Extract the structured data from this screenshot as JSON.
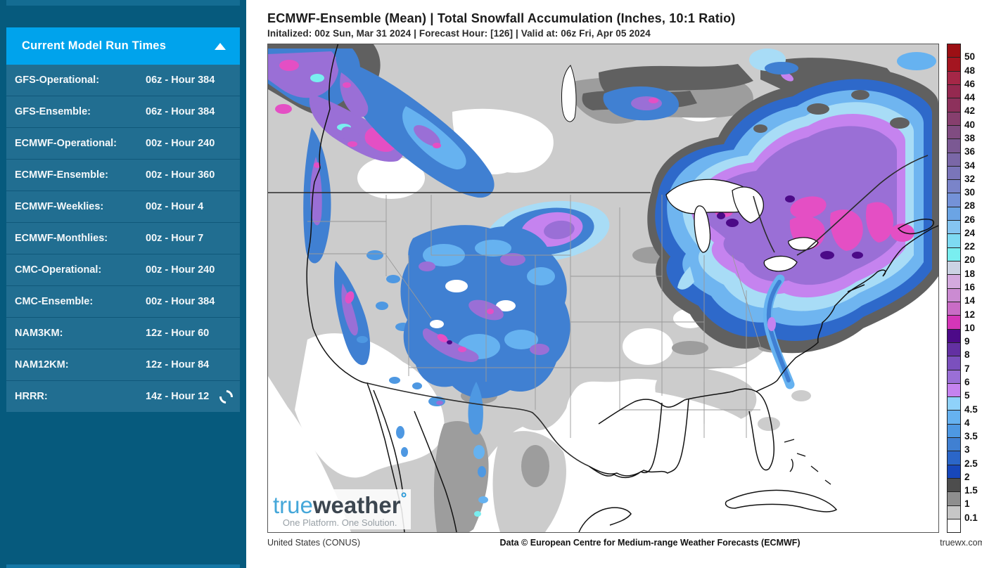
{
  "sidebar": {
    "header": {
      "title": "Current Model Run Times",
      "collapse_icon": "triangle-up"
    },
    "items": [
      {
        "label": "GFS-Operational:",
        "value": "06z - Hour 384",
        "loading": false
      },
      {
        "label": "GFS-Ensemble:",
        "value": "06z - Hour 384",
        "loading": false
      },
      {
        "label": "ECMWF-Operational:",
        "value": "00z - Hour 240",
        "loading": false
      },
      {
        "label": "ECMWF-Ensemble:",
        "value": "00z - Hour 360",
        "loading": false
      },
      {
        "label": "ECMWF-Weeklies:",
        "value": "00z - Hour 4",
        "loading": false
      },
      {
        "label": "ECMWF-Monthlies:",
        "value": "00z - Hour 7",
        "loading": false
      },
      {
        "label": "CMC-Operational:",
        "value": "00z - Hour 240",
        "loading": false
      },
      {
        "label": "CMC-Ensemble:",
        "value": "00z - Hour 384",
        "loading": false
      },
      {
        "label": "NAM3KM:",
        "value": "12z - Hour 60",
        "loading": false
      },
      {
        "label": "NAM12KM:",
        "value": "12z - Hour 84",
        "loading": false
      },
      {
        "label": "HRRR:",
        "value": "14z - Hour 12",
        "loading": true
      }
    ]
  },
  "main": {
    "title": "ECMWF-Ensemble (Mean) | Total Snowfall Accumulation (Inches, 10:1 Ratio)",
    "subtitle": "Initalized: 00z Sun, Mar 31 2024  |  Forecast Hour: [126]  |  Valid at: 06z Fri, Apr 05 2024",
    "footer": {
      "left": "United States (CONUS)",
      "center": "Data © European Centre for Medium-range Weather Forecasts (ECMWF)",
      "right": "truewx.com"
    },
    "logo": {
      "part1": "true",
      "part2": "weather",
      "degree": "°",
      "tagline": "One Platform. One Solution."
    }
  },
  "chart_data": {
    "type": "heatmap",
    "title": "ECMWF-Ensemble (Mean) | Total Snowfall Accumulation (Inches, 10:1 Ratio)",
    "model": "ECMWF-Ensemble (Mean)",
    "variable": "Total Snowfall Accumulation",
    "units": "Inches (10:1 Ratio)",
    "initialized": "00z Sun, Mar 31 2024",
    "forecast_hour": 126,
    "valid_at": "06z Fri, Apr 05 2024",
    "region": "United States (CONUS)",
    "legend_position": "right",
    "legend": {
      "entries": [
        {
          "label": "50",
          "color": "#9c0f14"
        },
        {
          "label": "48",
          "color": "#a41520"
        },
        {
          "label": "46",
          "color": "#a52747"
        },
        {
          "label": "44",
          "color": "#952950"
        },
        {
          "label": "42",
          "color": "#8d315c"
        },
        {
          "label": "40",
          "color": "#873f6e"
        },
        {
          "label": "38",
          "color": "#804c81"
        },
        {
          "label": "36",
          "color": "#7b5993"
        },
        {
          "label": "34",
          "color": "#7a67a7"
        },
        {
          "label": "32",
          "color": "#7a75b9"
        },
        {
          "label": "30",
          "color": "#7a84c9"
        },
        {
          "label": "28",
          "color": "#7492d8"
        },
        {
          "label": "26",
          "color": "#6ba4e4"
        },
        {
          "label": "24",
          "color": "#85c5f0"
        },
        {
          "label": "22",
          "color": "#7edaf2"
        },
        {
          "label": "20",
          "color": "#79eef0"
        },
        {
          "label": "18",
          "color": "#cbd3e3"
        },
        {
          "label": "16",
          "color": "#d4aade"
        },
        {
          "label": "14",
          "color": "#cb8bd2"
        },
        {
          "label": "12",
          "color": "#c96cc6"
        },
        {
          "label": "10",
          "color": "#d436b8"
        },
        {
          "label": "9",
          "color": "#4c0a88"
        },
        {
          "label": "8",
          "color": "#6330a2"
        },
        {
          "label": "7",
          "color": "#7b50bd"
        },
        {
          "label": "6",
          "color": "#9a6fd6"
        },
        {
          "label": "5",
          "color": "#c583ef"
        },
        {
          "label": "4.5",
          "color": "#8fd2fa"
        },
        {
          "label": "4",
          "color": "#66b2f0"
        },
        {
          "label": "3.5",
          "color": "#4e98e2"
        },
        {
          "label": "3",
          "color": "#4080d2"
        },
        {
          "label": "2.5",
          "color": "#2b66c8"
        },
        {
          "label": "2",
          "color": "#1747ba"
        },
        {
          "label": "1.5",
          "color": "#4d4d4d"
        },
        {
          "label": "1",
          "color": "#8e8e8e"
        },
        {
          "label": "0.1",
          "color": "#c6c6c6"
        },
        {
          "label": "",
          "color": "#ffffff"
        }
      ]
    }
  }
}
